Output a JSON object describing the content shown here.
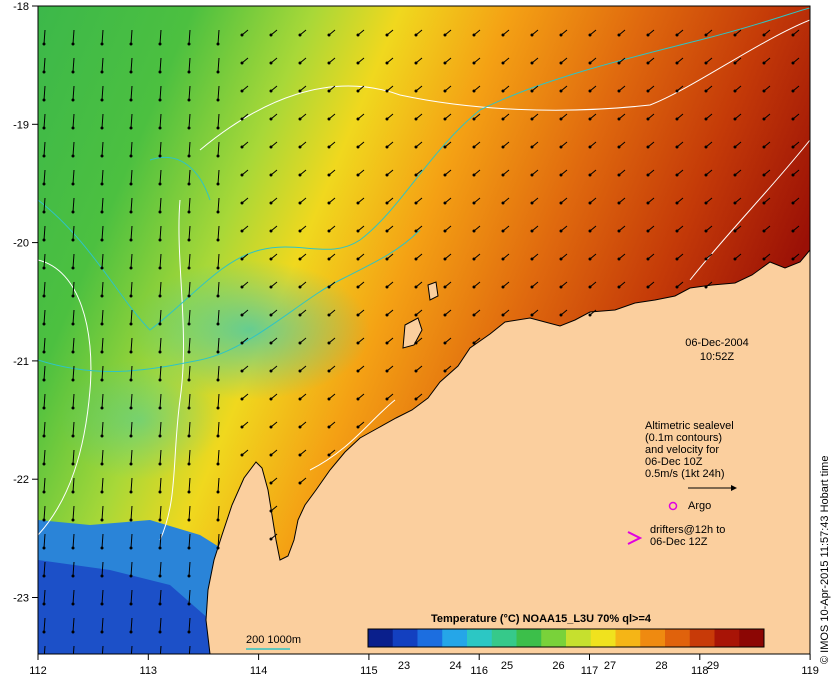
{
  "axes": {
    "x_ticks": [
      "112",
      "113",
      "114",
      "115",
      "116",
      "117",
      "118",
      "119"
    ],
    "y_ticks": [
      "-18",
      "-19",
      "-20",
      "-21",
      "-22",
      "-23"
    ]
  },
  "datetime": {
    "date": "06-Dec-2004",
    "time": "10:52Z"
  },
  "info": {
    "line1": "Altimetric sealevel",
    "line2": "(0.1m contours)",
    "line3": "and velocity for",
    "line4": "06-Dec 10Z",
    "line5": "0.5m/s (1kt 24h)"
  },
  "legend": {
    "argo": "Argo",
    "drifters_line1": "drifters@12h to",
    "drifters_line2": "06-Dec 12Z",
    "argo_color": "#e000e0",
    "drifter_color": "#e000e0"
  },
  "isobath": {
    "label": "200  1000m",
    "color": "#2fc4c4"
  },
  "colorbar": {
    "title": "Temperature (°C) NOAA15_L3U 70% ql>=4",
    "tick_labels": [
      "23",
      "24",
      "25",
      "26",
      "27",
      "28",
      "29"
    ],
    "colors": [
      "#0a1f8c",
      "#1340c0",
      "#1c6ee0",
      "#25a6e8",
      "#2cc7c4",
      "#36c98a",
      "#3cbf4a",
      "#79d23a",
      "#c6e02e",
      "#f0e21e",
      "#f5b516",
      "#ef8a10",
      "#e0620c",
      "#c83a08",
      "#a81406",
      "#8c0604"
    ]
  },
  "credit": "© IMOS 10-Apr-2015 11:57:43 Hobart time",
  "colors": {
    "land": "#fbcf9e",
    "cold_water": "#2a8cd8",
    "warm_water": "#9a1a08"
  }
}
